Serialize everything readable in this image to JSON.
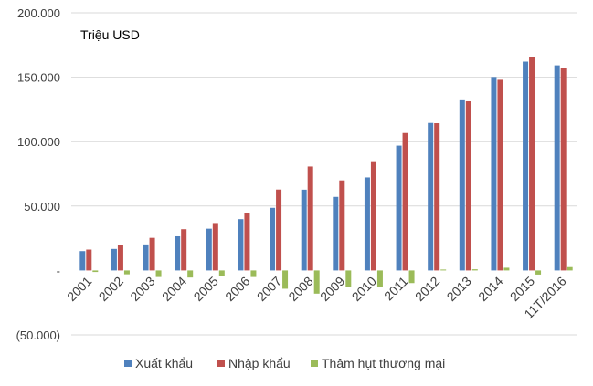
{
  "chart_data": {
    "type": "bar",
    "unit_label": "Triệu USD",
    "categories": [
      "2001",
      "2002",
      "2003",
      "2004",
      "2005",
      "2006",
      "2007",
      "2008",
      "2009",
      "2010",
      "2011",
      "2012",
      "2013",
      "2014",
      "2015",
      "11T/2016"
    ],
    "series": [
      {
        "name": "Xuất khẩu",
        "color": "#4f81bd",
        "values": [
          15000,
          16700,
          20200,
          26500,
          32400,
          39800,
          48600,
          62700,
          57100,
          72200,
          96900,
          114500,
          132100,
          150200,
          162100,
          159200
        ]
      },
      {
        "name": "Nhập khẩu",
        "color": "#c0504d",
        "values": [
          16200,
          19700,
          25300,
          32000,
          36800,
          44900,
          62800,
          80700,
          69900,
          84800,
          106700,
          114300,
          131300,
          148000,
          165600,
          157100
        ]
      },
      {
        "name": "Thâm hụt thương mại",
        "color": "#9bbb59",
        "values": [
          -1200,
          -3000,
          -5100,
          -5500,
          -4300,
          -5100,
          -14200,
          -18000,
          -12900,
          -12600,
          -9800,
          700,
          900,
          2100,
          -3200,
          2600
        ]
      }
    ],
    "yticks": [
      {
        "value": 200000,
        "label": "200.000"
      },
      {
        "value": 150000,
        "label": "150.000"
      },
      {
        "value": 100000,
        "label": "100.000"
      },
      {
        "value": 50000,
        "label": "50.000"
      },
      {
        "value": 0,
        "label": "-"
      },
      {
        "value": -50000,
        "label": "(50.000)"
      }
    ],
    "ylim": [
      -50000,
      200000
    ],
    "grid": true,
    "legend_position": "bottom"
  }
}
